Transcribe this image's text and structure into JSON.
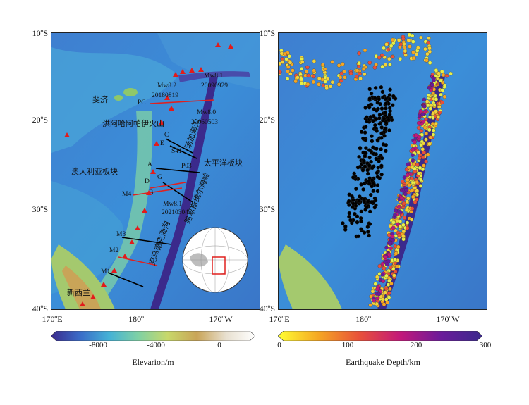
{
  "axes": {
    "lat_labels": [
      "10ºS",
      "20ºS",
      "30ºS",
      "40ºS"
    ],
    "lon_labels": [
      "170ºE",
      "180º",
      "170ºW"
    ]
  },
  "left_map": {
    "labels": {
      "fiji": "斐济",
      "hunga": "洪阿哈阿帕伊火山",
      "aus_plate": "澳大利亚板块",
      "pac_plate": "太平洋板块",
      "nz": "新西兰",
      "tonga_trench": "汤加海沟",
      "kermadec_trench": "克马德克海沟",
      "louisville": "路易斯维尔海岭"
    },
    "events": [
      {
        "mag": "Mw8.2",
        "date": "20180819"
      },
      {
        "mag": "Mw8.1",
        "date": "20090929"
      },
      {
        "mag": "Mw8.0",
        "date": "20060503"
      },
      {
        "mag": "Mw8.1",
        "date": "20210304"
      }
    ],
    "profiles": [
      "PC",
      "C",
      "E",
      "S41",
      "A",
      "P03",
      "G",
      "D",
      "B",
      "M4",
      "M3",
      "M2",
      "M1"
    ]
  },
  "colorbars": {
    "elevation": {
      "title": "Elevarion/m",
      "ticks": [
        "-8000",
        "-4000",
        "0"
      ],
      "colors": [
        "#3b2a8c",
        "#3a6cc8",
        "#45b2d6",
        "#7fd1a4",
        "#c8d86a",
        "#c9a458",
        "#e8e0d0",
        "#ffffff"
      ]
    },
    "depth": {
      "title": "Earthquake Depth/km",
      "ticks": [
        "0",
        "100",
        "200",
        "300"
      ],
      "colors": [
        "#ffff33",
        "#f5a623",
        "#e8503a",
        "#c2187a",
        "#6a1b9a",
        "#3b2a8c"
      ]
    }
  },
  "colors": {
    "shallow_quake": "#d9e84a",
    "deep_quake": "#000000",
    "volcano": "#e21b1b",
    "profile_black": "#000000",
    "profile_red": "#e0201f"
  }
}
